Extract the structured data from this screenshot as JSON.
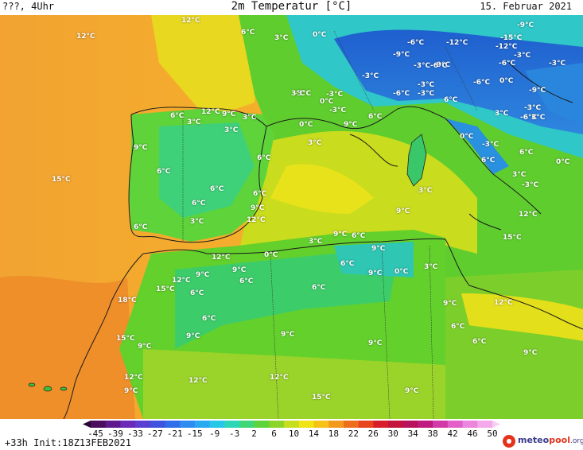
{
  "header": {
    "left": "???, 4Uhr",
    "title": "2m Temperatur [°C]",
    "date": "15. Februar 2021"
  },
  "map": {
    "labels": [
      "12°C",
      "12°C",
      "6°C",
      "3°C",
      "0°C",
      "-9°C",
      "-6°C",
      "-12°C",
      "-15°C",
      "-12°C",
      "-9°C",
      "-3°C",
      "-9°C",
      "-6°C",
      "-3°C",
      "-6°C",
      "-3°C",
      "-3°C",
      "-6°C",
      "-3°C",
      "-6°C",
      "-9°C",
      "-3°C",
      "-3°C",
      "-3°C",
      "3°C",
      "0°C",
      "0°C",
      "-3°C",
      "-6°C",
      "6°C",
      "-3°C",
      "12°C",
      "9°C",
      "3°C",
      "6°C",
      "3°C",
      "3°C",
      "0°C",
      "9°C",
      "6°C",
      "3°C",
      "0°C",
      "-3°C",
      "3°C",
      "9°C",
      "3°C",
      "6°C",
      "0°C",
      "6°C",
      "15°C",
      "6°C",
      "6°C",
      "3°C",
      "3°C",
      "6°C",
      "-3°C",
      "9°C",
      "6°C",
      "6°C",
      "9°C",
      "3°C",
      "12°C",
      "12°C",
      "6°C",
      "3°C",
      "9°C",
      "6°C",
      "15°C",
      "12°C",
      "0°C",
      "9°C",
      "9°C",
      "0°C",
      "6°C",
      "3°C",
      "12°C",
      "9°C",
      "9°C",
      "6°C",
      "15°C",
      "6°C",
      "6°C",
      "18°C",
      "9°C",
      "12°C",
      "6°C",
      "15°C",
      "9°C",
      "9°C",
      "9°C",
      "6°C",
      "6°C",
      "12°C",
      "9°C",
      "12°C",
      "12°C",
      "9°C",
      "9°C",
      "15°C",
      "9°C"
    ],
    "colors": {
      "sea_warm": "#f3a23a",
      "sea_orange": "#f6b12c",
      "land_green": "#66cf2c",
      "alps_blue": "#2a72d6",
      "sea_yellow": "#e4e41c"
    }
  },
  "colorbar": {
    "ticks": [
      "-45",
      "-39",
      "-33",
      "-27",
      "-21",
      "-15",
      "-9",
      "-3",
      "2",
      "6",
      "10",
      "14",
      "18",
      "22",
      "26",
      "30",
      "34",
      "38",
      "42",
      "46",
      "50"
    ],
    "colors": [
      "#4a0e5c",
      "#5e1a8c",
      "#6b2bb8",
      "#5a3fd0",
      "#3f52e0",
      "#2f6ee8",
      "#2f8cf0",
      "#29a9f2",
      "#25c6e8",
      "#2ed6b8",
      "#3fd67a",
      "#5ed43a",
      "#8cd42a",
      "#c6de1e",
      "#f0e414",
      "#f6c218",
      "#f39a1e",
      "#ee6e1e",
      "#e8441e",
      "#d81e2a",
      "#c4143e",
      "#b8125c",
      "#c01a80",
      "#d23aa8",
      "#e260c8",
      "#ec86dc",
      "#f4aaea"
    ]
  },
  "footer": {
    "run": "+33h Init:18Z13FEB2021",
    "logo_main": "meteo",
    "logo_accent": "pool",
    "logo_suffix": ".org"
  }
}
